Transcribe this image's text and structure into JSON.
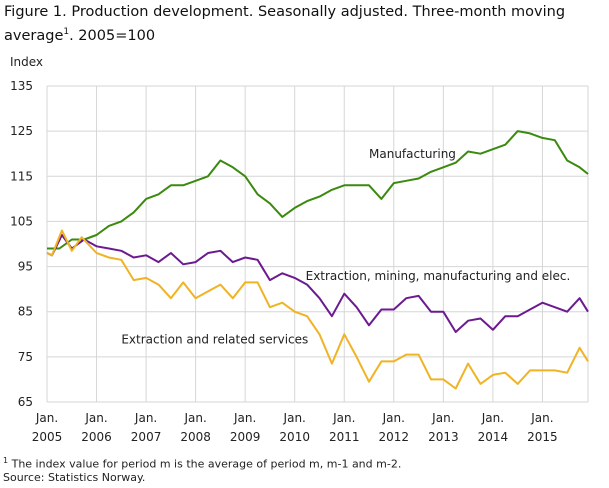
{
  "title_main": "Figure 1. Production development. Seasonally adjusted. Three-month moving average",
  "title_sup": "1",
  "title_tail": ". 2005=100",
  "footnote_sup": "1",
  "footnote": "The index value for period m is the average of period m, m-1 and m-2.",
  "source": "Source: Statistics Norway.",
  "chart_data": {
    "type": "line",
    "title": "Figure 1. Production development. Seasonally adjusted. Three-month moving average1. 2005=100",
    "ylabel": "Index",
    "xlabel": "",
    "ylim": [
      65,
      135
    ],
    "xlim": [
      2005.0,
      2015.92
    ],
    "yticks": [
      65,
      75,
      85,
      95,
      105,
      115,
      125,
      135
    ],
    "xticks": [
      {
        "value": 2005,
        "line1": "Jan.",
        "line2": "2005"
      },
      {
        "value": 2006,
        "line1": "Jan.",
        "line2": "2006"
      },
      {
        "value": 2007,
        "line1": "Jan.",
        "line2": "2007"
      },
      {
        "value": 2008,
        "line1": "Jan.",
        "line2": "2008"
      },
      {
        "value": 2009,
        "line1": "Jan.",
        "line2": "2009"
      },
      {
        "value": 2010,
        "line1": "Jan.",
        "line2": "2010"
      },
      {
        "value": 2011,
        "line1": "Jan.",
        "line2": "2011"
      },
      {
        "value": 2012,
        "line1": "Jan.",
        "line2": "2012"
      },
      {
        "value": 2013,
        "line1": "Jan.",
        "line2": "2013"
      },
      {
        "value": 2014,
        "line1": "Jan.",
        "line2": "2014"
      },
      {
        "value": 2015,
        "line1": "Jan.",
        "line2": "2015"
      }
    ],
    "grid": true,
    "series": [
      {
        "name": "Manufacturing",
        "color": "#3a8a0e",
        "label_at": [
          2011.5,
          119
        ],
        "x": [
          2005.0,
          2005.25,
          2005.5,
          2005.75,
          2006.0,
          2006.25,
          2006.5,
          2006.75,
          2007.0,
          2007.25,
          2007.5,
          2007.75,
          2008.0,
          2008.25,
          2008.5,
          2008.75,
          2009.0,
          2009.25,
          2009.5,
          2009.75,
          2010.0,
          2010.25,
          2010.5,
          2010.75,
          2011.0,
          2011.25,
          2011.5,
          2011.75,
          2012.0,
          2012.25,
          2012.5,
          2012.75,
          2013.0,
          2013.25,
          2013.5,
          2013.75,
          2014.0,
          2014.25,
          2014.5,
          2014.75,
          2015.0,
          2015.25,
          2015.5,
          2015.75,
          2015.92
        ],
        "y": [
          99,
          99,
          101,
          101,
          102,
          104,
          105,
          107,
          110,
          111,
          113,
          113,
          114,
          115,
          118.5,
          117,
          115,
          111,
          109,
          106,
          108,
          109.5,
          110.5,
          112,
          113,
          113,
          113,
          110,
          113.5,
          114,
          114.5,
          116,
          117,
          118,
          120.5,
          120,
          121,
          122,
          125,
          124.5,
          123.5,
          123,
          118.5,
          117,
          115.5
        ]
      },
      {
        "name": "Extraction, mining, manufacturing and elec.",
        "color": "#6b1a8f",
        "label_at": [
          2010.22,
          92
        ],
        "x": [
          2005.0,
          2005.1,
          2005.3,
          2005.5,
          2005.75,
          2006.0,
          2006.25,
          2006.5,
          2006.75,
          2007.0,
          2007.25,
          2007.5,
          2007.75,
          2008.0,
          2008.25,
          2008.5,
          2008.75,
          2009.0,
          2009.25,
          2009.5,
          2009.75,
          2010.0,
          2010.25,
          2010.5,
          2010.75,
          2011.0,
          2011.25,
          2011.5,
          2011.75,
          2012.0,
          2012.25,
          2012.5,
          2012.75,
          2013.0,
          2013.25,
          2013.5,
          2013.75,
          2014.0,
          2014.25,
          2014.5,
          2014.75,
          2015.0,
          2015.25,
          2015.5,
          2015.75,
          2015.92
        ],
        "y": [
          98,
          97.5,
          102,
          99,
          101,
          99.5,
          99,
          98.5,
          97,
          97.5,
          96,
          98,
          95.5,
          96,
          98,
          98.5,
          96,
          97,
          96.5,
          92,
          93.5,
          92.5,
          91,
          88,
          84,
          89,
          86,
          82,
          85.5,
          85.5,
          88,
          88.5,
          85,
          85,
          80.5,
          83,
          83.5,
          81,
          84,
          84,
          85.5,
          87,
          86,
          85,
          88,
          85
        ]
      },
      {
        "name": "Extraction and related services",
        "color": "#f0b323",
        "label_at": [
          2006.5,
          78
        ],
        "x": [
          2005.0,
          2005.1,
          2005.3,
          2005.5,
          2005.7,
          2006.0,
          2006.25,
          2006.5,
          2006.75,
          2007.0,
          2007.25,
          2007.5,
          2007.75,
          2008.0,
          2008.25,
          2008.5,
          2008.75,
          2009.0,
          2009.25,
          2009.5,
          2009.75,
          2010.0,
          2010.25,
          2010.5,
          2010.75,
          2011.0,
          2011.25,
          2011.5,
          2011.75,
          2012.0,
          2012.25,
          2012.5,
          2012.75,
          2013.0,
          2013.25,
          2013.5,
          2013.75,
          2014.0,
          2014.25,
          2014.5,
          2014.75,
          2015.0,
          2015.25,
          2015.5,
          2015.75,
          2015.92
        ],
        "y": [
          98,
          97.5,
          103,
          98.5,
          101.5,
          98,
          97,
          96.5,
          92,
          92.5,
          91,
          88,
          91.5,
          88,
          89.5,
          91,
          88,
          91.5,
          91.5,
          86,
          87,
          85,
          84,
          80,
          73.5,
          80,
          75,
          69.5,
          74,
          74,
          75.5,
          75.5,
          70,
          70,
          68,
          73.5,
          69,
          71,
          71.5,
          69,
          72,
          72,
          72,
          71.5,
          77,
          74
        ]
      }
    ]
  }
}
